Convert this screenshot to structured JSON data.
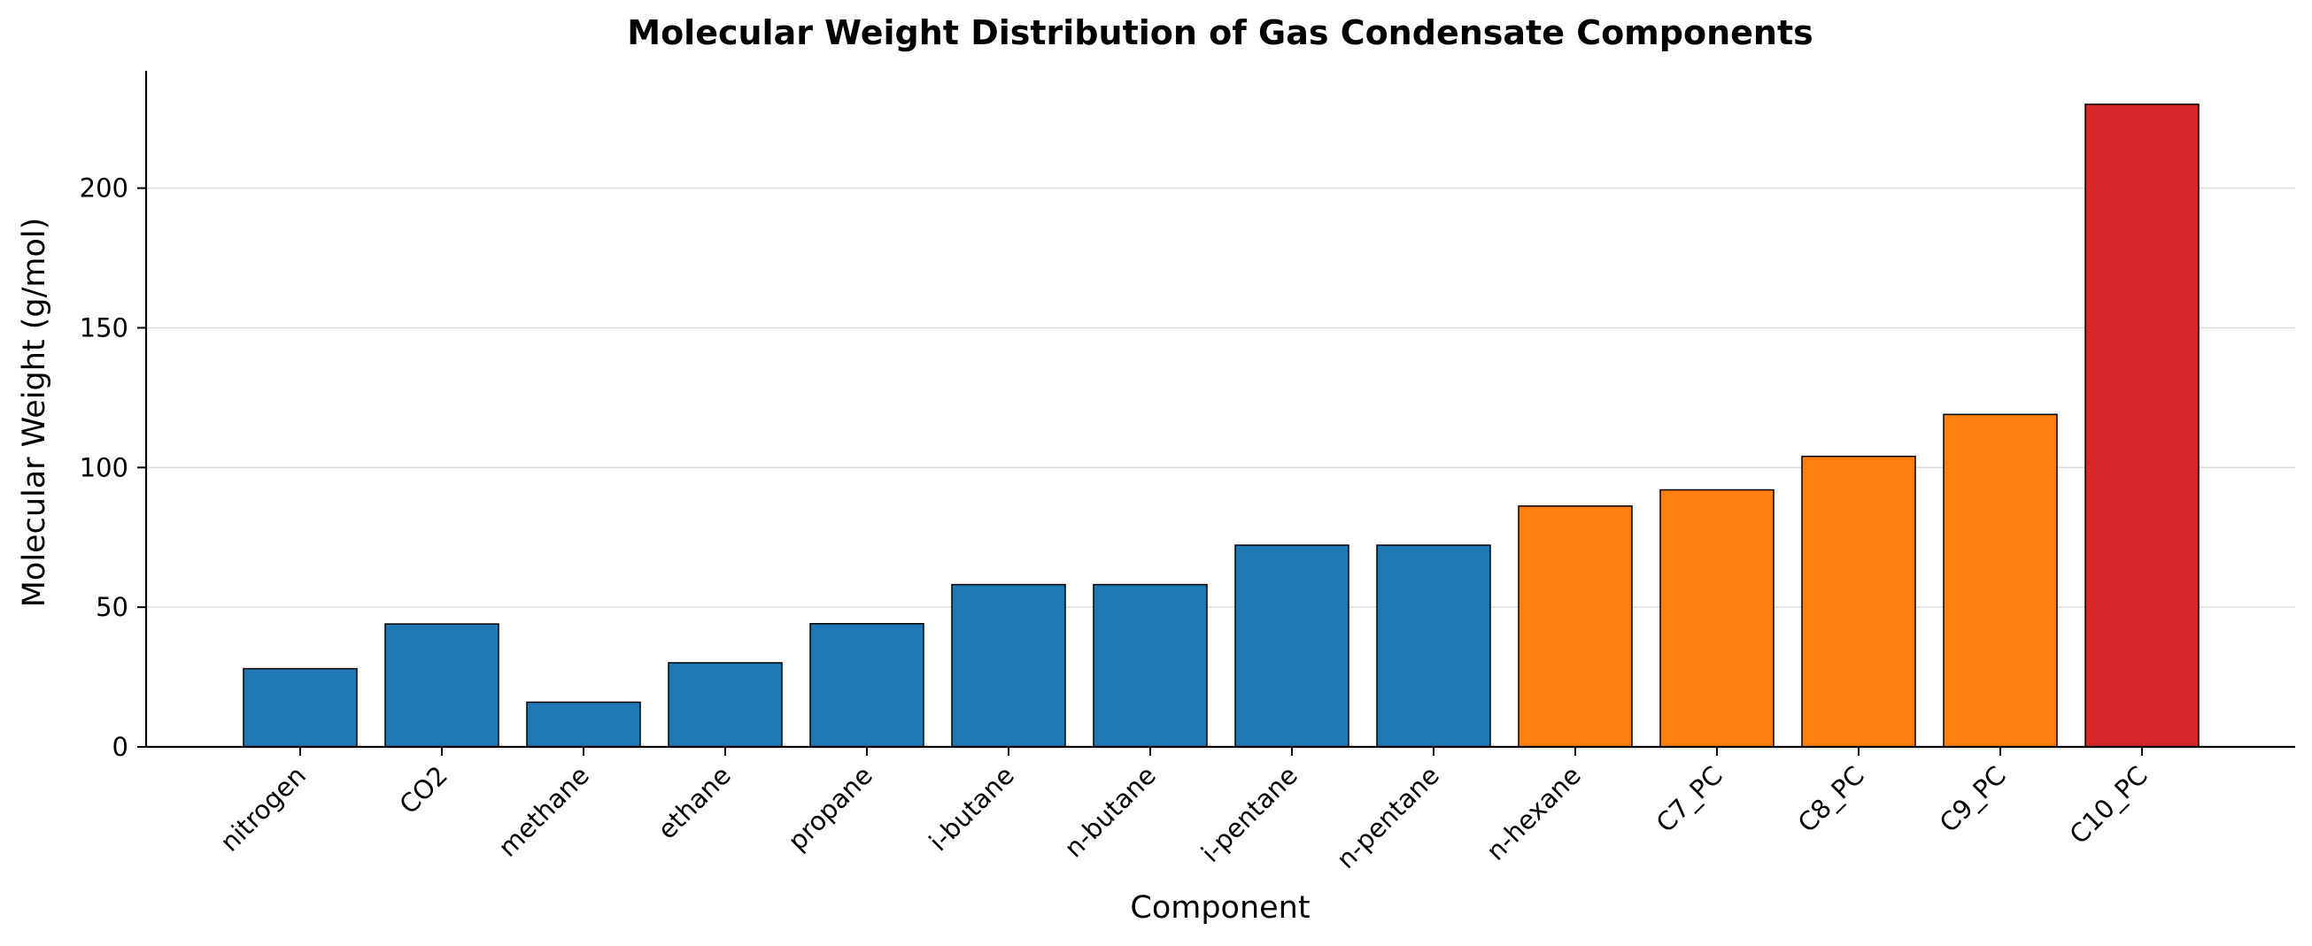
{
  "chart_data": {
    "type": "bar",
    "title": "Molecular Weight Distribution of Gas Condensate Components",
    "xlabel": "Component",
    "ylabel": "Molecular Weight (g/mol)",
    "categories": [
      "nitrogen",
      "CO2",
      "methane",
      "ethane",
      "propane",
      "i-butane",
      "n-butane",
      "i-pentane",
      "n-pentane",
      "n-hexane",
      "C7_PC",
      "C8_PC",
      "C9_PC",
      "C10_PC"
    ],
    "values": [
      28.0,
      44.0,
      16.0,
      30.1,
      44.1,
      58.1,
      58.1,
      72.2,
      72.2,
      86.2,
      92.0,
      104.0,
      119.0,
      230.0
    ],
    "bar_colors": [
      "#1f77b4",
      "#1f77b4",
      "#1f77b4",
      "#1f77b4",
      "#1f77b4",
      "#1f77b4",
      "#1f77b4",
      "#1f77b4",
      "#1f77b4",
      "#ff7f0e",
      "#ff7f0e",
      "#ff7f0e",
      "#ff7f0e",
      "#d62728"
    ],
    "ylim": [
      0,
      242
    ],
    "yticks": [
      0,
      50,
      100,
      150,
      200
    ],
    "ytick_labels": [
      "0",
      "50",
      "100",
      "150",
      "200"
    ],
    "grid": "horizontal",
    "legend": "none"
  }
}
